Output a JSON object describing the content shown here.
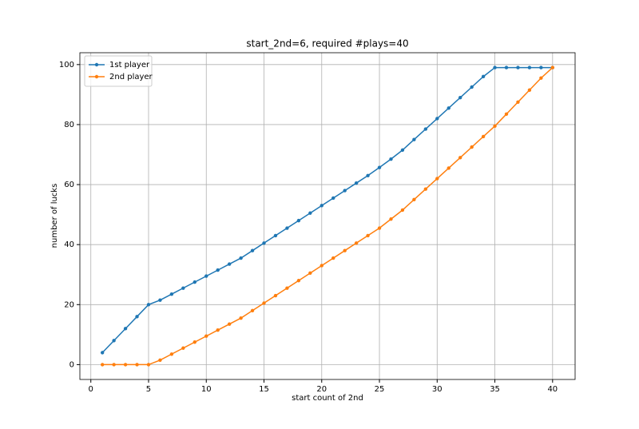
{
  "chart_data": {
    "type": "line",
    "title": "start_2nd=6, required #plays=40",
    "xlabel": "start count of 2nd",
    "ylabel": "number of lucks",
    "x": [
      1,
      2,
      3,
      4,
      5,
      6,
      7,
      8,
      9,
      10,
      11,
      12,
      13,
      14,
      15,
      16,
      17,
      18,
      19,
      20,
      21,
      22,
      23,
      24,
      25,
      26,
      27,
      28,
      29,
      30,
      31,
      32,
      33,
      34,
      35,
      36,
      37,
      38,
      39,
      40
    ],
    "series": [
      {
        "name": "1st player",
        "color": "#1f77b4",
        "values": [
          4,
          8,
          12,
          16,
          20,
          21.5,
          23.5,
          25.5,
          27.5,
          29.5,
          31.5,
          33.5,
          35.5,
          38,
          40.5,
          43,
          45.5,
          48,
          50.5,
          53,
          55.5,
          58,
          60.5,
          63,
          65.7,
          68.5,
          71.5,
          75,
          78.5,
          82,
          85.5,
          89,
          92.5,
          96,
          99,
          99,
          99,
          99,
          99,
          99
        ]
      },
      {
        "name": "2nd player",
        "color": "#ff7f0e",
        "values": [
          0,
          0,
          0,
          0,
          0,
          1.5,
          3.5,
          5.5,
          7.5,
          9.5,
          11.5,
          13.5,
          15.5,
          18,
          20.5,
          23,
          25.5,
          28,
          30.5,
          33,
          35.5,
          38,
          40.5,
          43,
          45.5,
          48.5,
          51.5,
          55,
          58.5,
          62,
          65.5,
          69,
          72.5,
          76,
          79.5,
          83.5,
          87.5,
          91.5,
          95.5,
          99
        ]
      }
    ],
    "xlim": [
      -0.95,
      41.95
    ],
    "ylim": [
      -4.95,
      103.95
    ],
    "xticks": [
      0,
      5,
      10,
      15,
      20,
      25,
      30,
      35,
      40
    ],
    "yticks": [
      0,
      20,
      40,
      60,
      80,
      100
    ],
    "grid": true,
    "legend": "upper left"
  }
}
